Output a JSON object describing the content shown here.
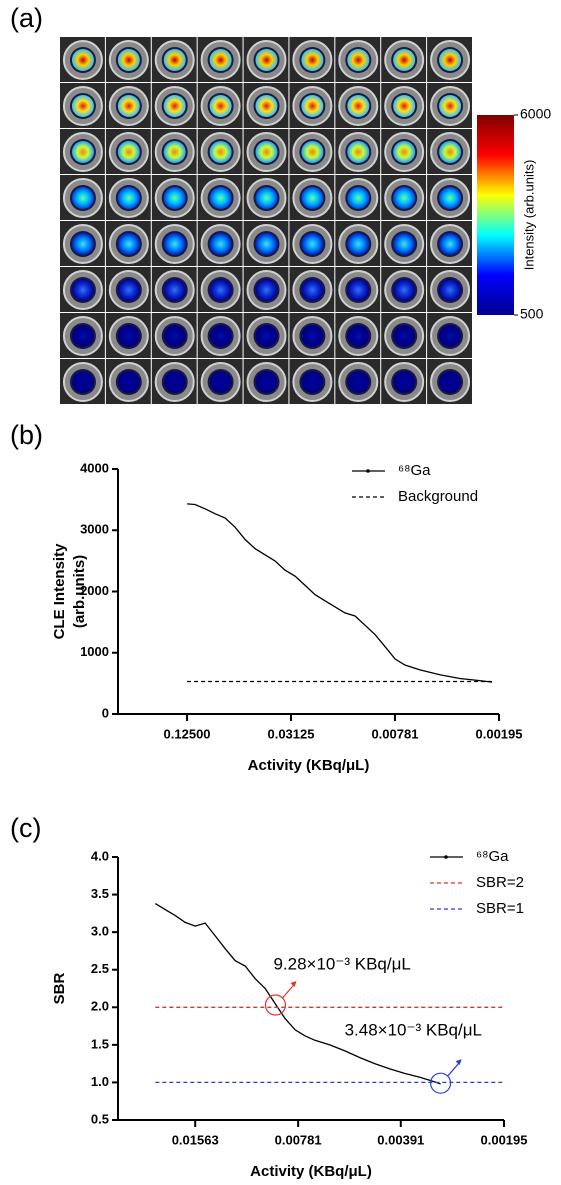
{
  "chart_data": [
    {
      "type": "image",
      "panel_label": "(a)",
      "colorbar": {
        "label": "Intensity (arb.units)",
        "lim": [
          500,
          6000
        ],
        "ticks": [
          500,
          6000
        ]
      }
    },
    {
      "type": "line",
      "panel_label": "(b)",
      "ylabel": [
        "CLE Intensity",
        "(arb.units)"
      ],
      "xlabel": "Activity (KBq/μL)",
      "xscale": "log",
      "xlim": [
        0.314,
        0.00195
      ],
      "xticks": [
        {
          "value": 0.125,
          "label": "0.12500"
        },
        0.03125,
        0.00781,
        0.00195
      ],
      "ylim": [
        0,
        4000
      ],
      "yticks": [
        0,
        1000,
        2000,
        3000,
        4000
      ],
      "series": [
        {
          "name": "⁶⁸Ga",
          "color": "#000000",
          "style": "solid",
          "x": [
            0.125,
            0.1124,
            0.0983,
            0.0861,
            0.0753,
            0.0659,
            0.0577,
            0.0505,
            0.0442,
            0.0387,
            0.0339,
            0.0296,
            0.0259,
            0.0227,
            0.0199,
            0.0174,
            0.0152,
            0.0133,
            0.01165,
            0.0102,
            0.00892,
            0.00781,
            0.00684,
            0.0056,
            0.00429,
            0.00329,
            0.00252,
            0.00214
          ],
          "values": [
            3430,
            3420,
            3350,
            3270,
            3200,
            3050,
            2850,
            2700,
            2600,
            2500,
            2350,
            2250,
            2100,
            1950,
            1850,
            1750,
            1650,
            1600,
            1450,
            1300,
            1100,
            900,
            800,
            720,
            640,
            580,
            545,
            520
          ]
        },
        {
          "name": "Background",
          "color": "#000000",
          "style": "dashed",
          "x": [
            0.125,
            0.00214
          ],
          "values": [
            530,
            530
          ]
        }
      ]
    },
    {
      "type": "line",
      "panel_label": "(c)",
      "ylabel": [
        "SBR"
      ],
      "xlabel": "Activity (KBq/μL)",
      "xscale": "log",
      "xlim": [
        0.0263,
        0.00195
      ],
      "xticks": [
        0.01563,
        0.00781,
        0.00391,
        0.00195
      ],
      "ylim": [
        0.5,
        4.0
      ],
      "yticks": [
        0.5,
        {
          "value": 1,
          "label": "1.0"
        },
        1.5,
        {
          "value": 2,
          "label": "2.0"
        },
        2.5,
        {
          "value": 3,
          "label": "3.0"
        },
        3.5,
        {
          "value": 4,
          "label": "4.0"
        }
      ],
      "series": [
        {
          "name": "⁶⁸Ga",
          "color": "#000000",
          "style": "solid",
          "x": [
            0.02046,
            0.01913,
            0.01788,
            0.01672,
            0.01563,
            0.01461,
            0.01366,
            0.01277,
            0.01194,
            0.01116,
            0.01043,
            0.00975,
            0.00912,
            0.00853,
            0.00797,
            0.00746,
            0.00697,
            0.00631,
            0.0057,
            0.00515,
            0.00466,
            0.00421,
            0.00381,
            0.00344,
            0.00322,
            0.00299
          ],
          "values": [
            3.38,
            3.3,
            3.22,
            3.13,
            3.08,
            3.12,
            2.95,
            2.78,
            2.62,
            2.55,
            2.38,
            2.25,
            2.05,
            1.85,
            1.7,
            1.62,
            1.56,
            1.5,
            1.42,
            1.33,
            1.25,
            1.18,
            1.12,
            1.07,
            1.03,
            0.98
          ]
        },
        {
          "name": "SBR=2",
          "color": "#e0322d",
          "style": "dashed",
          "x": [
            0.02046,
            0.00194
          ],
          "values": [
            2,
            2
          ]
        },
        {
          "name": "SBR=1",
          "color": "#2b3fd6",
          "style": "dashed",
          "x": [
            0.02046,
            0.00194
          ],
          "values": [
            1,
            1
          ]
        }
      ],
      "annotations": [
        {
          "text": "9.28×10⁻³ KBq/μL",
          "x": 0.0091,
          "y": 2.03,
          "color": "#e0322d"
        },
        {
          "text": "3.48×10⁻³ KBq/μL",
          "x": 0.00299,
          "y": 0.99,
          "color": "#2b3fd6"
        }
      ]
    }
  ]
}
